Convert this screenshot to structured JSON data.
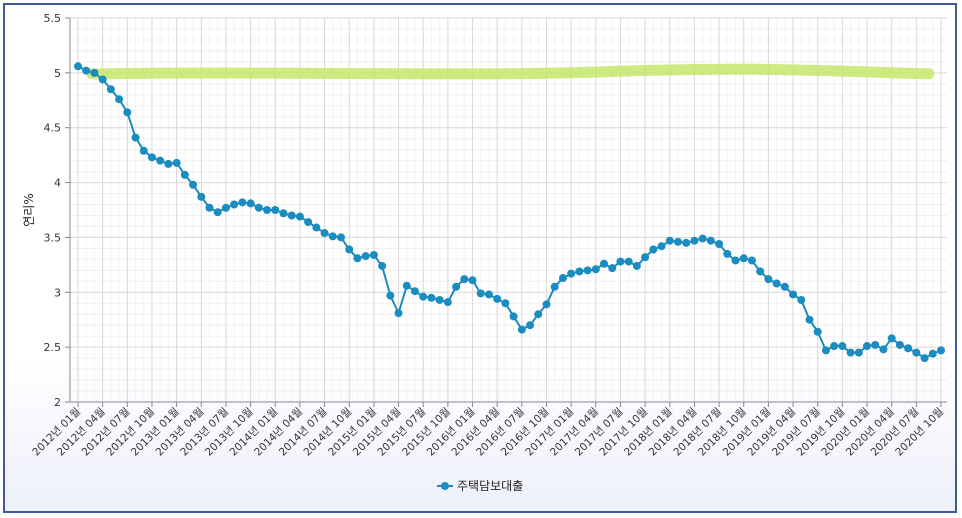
{
  "chart_data": {
    "type": "line",
    "ylabel": "연리%",
    "ylim": [
      2,
      5.5
    ],
    "yticks": [
      "2",
      "2.5",
      "3",
      "3.5",
      "4",
      "4.5",
      "5",
      "5.5"
    ],
    "grid": true,
    "legend_position": "bottom",
    "highlight_band": {
      "value": 5.0,
      "color": "#c5e86c"
    },
    "xtick_labels": [
      "2012년 01월",
      "2012년 04월",
      "2012년 07월",
      "2012년 10월",
      "2013년 01월",
      "2013년 04월",
      "2013년 07월",
      "2013년 10월",
      "2014년 01월",
      "2014년 04월",
      "2014년 07월",
      "2014년 10월",
      "2015년 01월",
      "2015년 04월",
      "2015년 07월",
      "2015년 10월",
      "2016년 01월",
      "2016년 04월",
      "2016년 07월",
      "2016년 10월",
      "2017년 01월",
      "2017년 04월",
      "2017년 07월",
      "2017년 10월",
      "2018년 01월",
      "2018년 04월",
      "2018년 07월",
      "2018년 10월",
      "2019년 01월",
      "2019년 04월",
      "2019년 07월",
      "2019년 10월",
      "2020년 01월",
      "2020년 04월",
      "2020년 07월",
      "2020년 10월"
    ],
    "series": [
      {
        "name": "주택담보대출",
        "color": "#1a8cbf",
        "values": [
          5.06,
          5.02,
          5.0,
          4.94,
          4.85,
          4.76,
          4.64,
          4.41,
          4.29,
          4.23,
          4.2,
          4.17,
          4.18,
          4.07,
          3.98,
          3.87,
          3.77,
          3.73,
          3.77,
          3.8,
          3.82,
          3.81,
          3.77,
          3.75,
          3.75,
          3.72,
          3.7,
          3.69,
          3.64,
          3.59,
          3.54,
          3.51,
          3.5,
          3.39,
          3.31,
          3.33,
          3.34,
          3.24,
          2.97,
          2.81,
          3.06,
          3.01,
          2.96,
          2.95,
          2.93,
          2.91,
          3.05,
          3.12,
          3.11,
          2.99,
          2.98,
          2.94,
          2.9,
          2.78,
          2.66,
          2.7,
          2.8,
          2.89,
          3.05,
          3.13,
          3.17,
          3.19,
          3.2,
          3.21,
          3.26,
          3.22,
          3.28,
          3.28,
          3.24,
          3.32,
          3.39,
          3.42,
          3.47,
          3.46,
          3.45,
          3.47,
          3.49,
          3.47,
          3.44,
          3.35,
          3.29,
          3.31,
          3.29,
          3.19,
          3.12,
          3.08,
          3.05,
          2.98,
          2.93,
          2.75,
          2.64,
          2.47,
          2.51,
          2.51,
          2.45,
          2.45,
          2.51,
          2.52,
          2.48,
          2.58,
          2.52,
          2.49,
          2.45,
          2.4,
          2.44,
          2.47
        ]
      }
    ]
  }
}
